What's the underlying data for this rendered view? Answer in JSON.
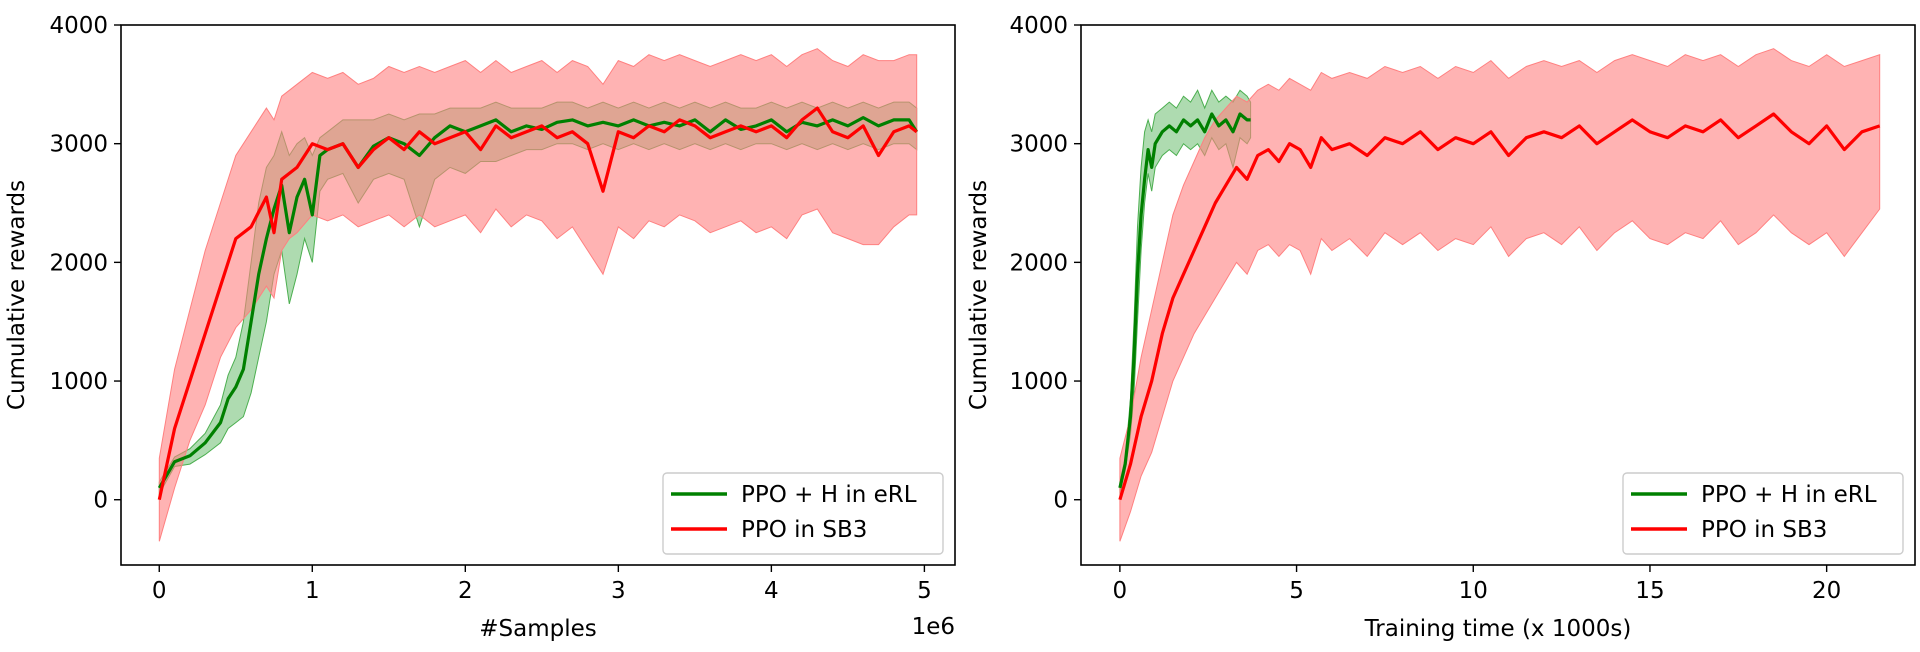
{
  "figure": {
    "colors": {
      "green": "#008000",
      "red": "#ff0000",
      "green_fill": "#4caf50",
      "red_fill": "#ff8080"
    }
  },
  "chart_data": [
    {
      "type": "line",
      "title": "",
      "xlabel": "#Samples",
      "ylabel": "Cumulative rewards",
      "x_scale_label": "1e6",
      "xlim": [
        -0.25,
        5.2
      ],
      "ylim": [
        -550,
        4000
      ],
      "xticks": [
        0,
        1,
        2,
        3,
        4,
        5
      ],
      "xtick_labels": [
        "0",
        "1",
        "2",
        "3",
        "4",
        "5"
      ],
      "yticks": [
        0,
        1000,
        2000,
        3000,
        4000
      ],
      "ytick_labels": [
        "0",
        "1000",
        "2000",
        "3000",
        "4000"
      ],
      "legend": {
        "placement": "lower-right",
        "entries": [
          "PPO + H in eRL",
          "PPO in SB3"
        ]
      },
      "series": [
        {
          "name": "PPO + H in eRL",
          "color": "#008000",
          "x": [
            0,
            0.1,
            0.2,
            0.3,
            0.4,
            0.45,
            0.5,
            0.55,
            0.6,
            0.65,
            0.7,
            0.75,
            0.8,
            0.85,
            0.9,
            0.95,
            1.0,
            1.05,
            1.1,
            1.2,
            1.3,
            1.4,
            1.5,
            1.6,
            1.7,
            1.8,
            1.9,
            2.0,
            2.1,
            2.2,
            2.3,
            2.4,
            2.5,
            2.6,
            2.7,
            2.8,
            2.9,
            3.0,
            3.1,
            3.2,
            3.3,
            3.4,
            3.5,
            3.6,
            3.7,
            3.8,
            3.9,
            4.0,
            4.1,
            4.2,
            4.3,
            4.4,
            4.5,
            4.6,
            4.7,
            4.8,
            4.9,
            4.95
          ],
          "values": [
            100,
            320,
            370,
            480,
            650,
            850,
            950,
            1100,
            1500,
            1900,
            2200,
            2450,
            2650,
            2250,
            2550,
            2700,
            2400,
            2900,
            2950,
            3000,
            2800,
            2980,
            3050,
            3000,
            2900,
            3050,
            3150,
            3100,
            3150,
            3200,
            3100,
            3150,
            3120,
            3180,
            3200,
            3150,
            3180,
            3150,
            3200,
            3150,
            3180,
            3150,
            3200,
            3100,
            3200,
            3120,
            3150,
            3200,
            3100,
            3180,
            3150,
            3200,
            3150,
            3220,
            3150,
            3200,
            3200,
            3100
          ],
          "lower": [
            50,
            280,
            300,
            380,
            480,
            600,
            650,
            700,
            900,
            1200,
            1500,
            1900,
            2100,
            1650,
            1900,
            2200,
            2000,
            2600,
            2700,
            2750,
            2500,
            2700,
            2750,
            2700,
            2300,
            2700,
            2800,
            2750,
            2850,
            2850,
            2900,
            2950,
            2950,
            3000,
            3000,
            2950,
            3000,
            2950,
            3000,
            2950,
            3000,
            2950,
            3000,
            2950,
            3000,
            2950,
            3000,
            3000,
            2950,
            3000,
            2950,
            3000,
            2950,
            3000,
            2950,
            3000,
            3000,
            2950
          ],
          "upper": [
            150,
            360,
            430,
            560,
            800,
            1050,
            1200,
            1500,
            2000,
            2500,
            2800,
            2900,
            3100,
            2900,
            3000,
            3050,
            2900,
            3050,
            3100,
            3200,
            3200,
            3200,
            3250,
            3200,
            3250,
            3250,
            3300,
            3300,
            3300,
            3350,
            3300,
            3300,
            3300,
            3350,
            3350,
            3300,
            3350,
            3300,
            3350,
            3300,
            3350,
            3300,
            3350,
            3300,
            3350,
            3300,
            3300,
            3350,
            3300,
            3350,
            3300,
            3350,
            3300,
            3350,
            3300,
            3350,
            3350,
            3300
          ]
        },
        {
          "name": "PPO in SB3",
          "color": "#ff0000",
          "x": [
            0,
            0.1,
            0.2,
            0.3,
            0.4,
            0.5,
            0.6,
            0.7,
            0.75,
            0.8,
            0.85,
            0.9,
            1.0,
            1.1,
            1.2,
            1.3,
            1.4,
            1.5,
            1.6,
            1.7,
            1.8,
            1.9,
            2.0,
            2.1,
            2.2,
            2.3,
            2.4,
            2.5,
            2.6,
            2.7,
            2.8,
            2.9,
            3.0,
            3.1,
            3.2,
            3.3,
            3.4,
            3.5,
            3.6,
            3.7,
            3.8,
            3.9,
            4.0,
            4.1,
            4.2,
            4.3,
            4.4,
            4.5,
            4.6,
            4.7,
            4.8,
            4.9,
            4.95
          ],
          "values": [
            0,
            600,
            1000,
            1400,
            1800,
            2200,
            2300,
            2550,
            2250,
            2700,
            2750,
            2800,
            3000,
            2950,
            3000,
            2800,
            2950,
            3050,
            2950,
            3100,
            3000,
            3050,
            3100,
            2950,
            3150,
            3050,
            3100,
            3150,
            3050,
            3100,
            3000,
            2600,
            3100,
            3050,
            3150,
            3100,
            3200,
            3150,
            3050,
            3100,
            3150,
            3100,
            3150,
            3050,
            3200,
            3300,
            3100,
            3050,
            3150,
            2900,
            3100,
            3150,
            3100
          ],
          "lower": [
            -350,
            100,
            500,
            800,
            1200,
            1450,
            1600,
            1800,
            1700,
            2100,
            2200,
            2250,
            2400,
            2350,
            2400,
            2300,
            2350,
            2400,
            2300,
            2400,
            2300,
            2350,
            2400,
            2250,
            2450,
            2300,
            2400,
            2350,
            2200,
            2300,
            2100,
            1900,
            2300,
            2200,
            2350,
            2300,
            2400,
            2350,
            2250,
            2300,
            2350,
            2250,
            2300,
            2200,
            2400,
            2450,
            2250,
            2200,
            2150,
            2150,
            2300,
            2400,
            2400
          ],
          "upper": [
            350,
            1100,
            1600,
            2100,
            2500,
            2900,
            3100,
            3300,
            3200,
            3400,
            3450,
            3500,
            3600,
            3550,
            3600,
            3500,
            3550,
            3650,
            3600,
            3650,
            3600,
            3650,
            3700,
            3600,
            3700,
            3600,
            3650,
            3700,
            3600,
            3700,
            3650,
            3500,
            3700,
            3650,
            3750,
            3700,
            3750,
            3700,
            3650,
            3700,
            3750,
            3700,
            3750,
            3650,
            3750,
            3800,
            3700,
            3650,
            3750,
            3700,
            3700,
            3750,
            3750
          ]
        }
      ]
    },
    {
      "type": "line",
      "title": "",
      "xlabel": "Training time (x 1000s)",
      "ylabel": "Cumulative rewards",
      "xlim": [
        -1.1,
        22.5
      ],
      "ylim": [
        -550,
        4000
      ],
      "xticks": [
        0,
        5,
        10,
        15,
        20
      ],
      "xtick_labels": [
        "0",
        "5",
        "10",
        "15",
        "20"
      ],
      "yticks": [
        0,
        1000,
        2000,
        3000,
        4000
      ],
      "ytick_labels": [
        "0",
        "1000",
        "2000",
        "3000",
        "4000"
      ],
      "legend": {
        "placement": "lower-right",
        "entries": [
          "PPO + H in eRL",
          "PPO in SB3"
        ]
      },
      "series": [
        {
          "name": "PPO + H in eRL",
          "color": "#008000",
          "x": [
            0,
            0.15,
            0.3,
            0.4,
            0.5,
            0.6,
            0.7,
            0.8,
            0.9,
            1.0,
            1.2,
            1.4,
            1.6,
            1.8,
            2.0,
            2.2,
            2.4,
            2.6,
            2.8,
            3.0,
            3.2,
            3.4,
            3.6,
            3.7
          ],
          "values": [
            100,
            300,
            700,
            1200,
            1900,
            2400,
            2700,
            2950,
            2800,
            3000,
            3100,
            3150,
            3100,
            3200,
            3150,
            3200,
            3100,
            3250,
            3150,
            3200,
            3100,
            3250,
            3200,
            3200
          ],
          "lower": [
            50,
            250,
            550,
            900,
            1500,
            2100,
            2500,
            2750,
            2600,
            2800,
            2900,
            2950,
            2900,
            3000,
            2950,
            3000,
            2900,
            3050,
            2950,
            3000,
            2800,
            3050,
            3000,
            3050
          ],
          "upper": [
            150,
            350,
            850,
            1500,
            2300,
            2800,
            3100,
            3200,
            3100,
            3250,
            3300,
            3350,
            3300,
            3400,
            3350,
            3450,
            3300,
            3450,
            3350,
            3400,
            3350,
            3450,
            3400,
            3350
          ]
        },
        {
          "name": "PPO in SB3",
          "color": "#ff0000",
          "x": [
            0,
            0.3,
            0.6,
            0.9,
            1.2,
            1.5,
            1.8,
            2.1,
            2.4,
            2.7,
            3.0,
            3.3,
            3.6,
            3.9,
            4.2,
            4.5,
            4.8,
            5.1,
            5.4,
            5.7,
            6.0,
            6.5,
            7.0,
            7.5,
            8.0,
            8.5,
            9.0,
            9.5,
            10.0,
            10.5,
            11.0,
            11.5,
            12.0,
            12.5,
            13.0,
            13.5,
            14.0,
            14.5,
            15.0,
            15.5,
            16.0,
            16.5,
            17.0,
            17.5,
            18.0,
            18.5,
            19.0,
            19.5,
            20.0,
            20.5,
            21.0,
            21.5
          ],
          "values": [
            0,
            300,
            700,
            1000,
            1400,
            1700,
            1900,
            2100,
            2300,
            2500,
            2650,
            2800,
            2700,
            2900,
            2950,
            2850,
            3000,
            2950,
            2800,
            3050,
            2950,
            3000,
            2900,
            3050,
            3000,
            3100,
            2950,
            3050,
            3000,
            3100,
            2900,
            3050,
            3100,
            3050,
            3150,
            3000,
            3100,
            3200,
            3100,
            3050,
            3150,
            3100,
            3200,
            3050,
            3150,
            3250,
            3100,
            3000,
            3150,
            2950,
            3100,
            3150
          ],
          "lower": [
            -350,
            -100,
            200,
            400,
            700,
            1000,
            1200,
            1400,
            1550,
            1700,
            1850,
            2000,
            1900,
            2100,
            2150,
            2050,
            2150,
            2100,
            1900,
            2200,
            2100,
            2200,
            2050,
            2250,
            2150,
            2250,
            2100,
            2200,
            2150,
            2300,
            2050,
            2200,
            2250,
            2150,
            2300,
            2100,
            2250,
            2350,
            2200,
            2150,
            2250,
            2200,
            2350,
            2150,
            2250,
            2400,
            2250,
            2150,
            2250,
            2050,
            2250,
            2450
          ],
          "upper": [
            350,
            700,
            1200,
            1600,
            2000,
            2400,
            2650,
            2850,
            3050,
            3200,
            3300,
            3400,
            3350,
            3450,
            3500,
            3450,
            3550,
            3500,
            3450,
            3600,
            3550,
            3600,
            3550,
            3650,
            3600,
            3650,
            3550,
            3650,
            3600,
            3700,
            3550,
            3650,
            3700,
            3650,
            3700,
            3600,
            3700,
            3750,
            3700,
            3650,
            3750,
            3700,
            3750,
            3650,
            3750,
            3800,
            3700,
            3650,
            3750,
            3650,
            3700,
            3750
          ]
        }
      ]
    }
  ]
}
